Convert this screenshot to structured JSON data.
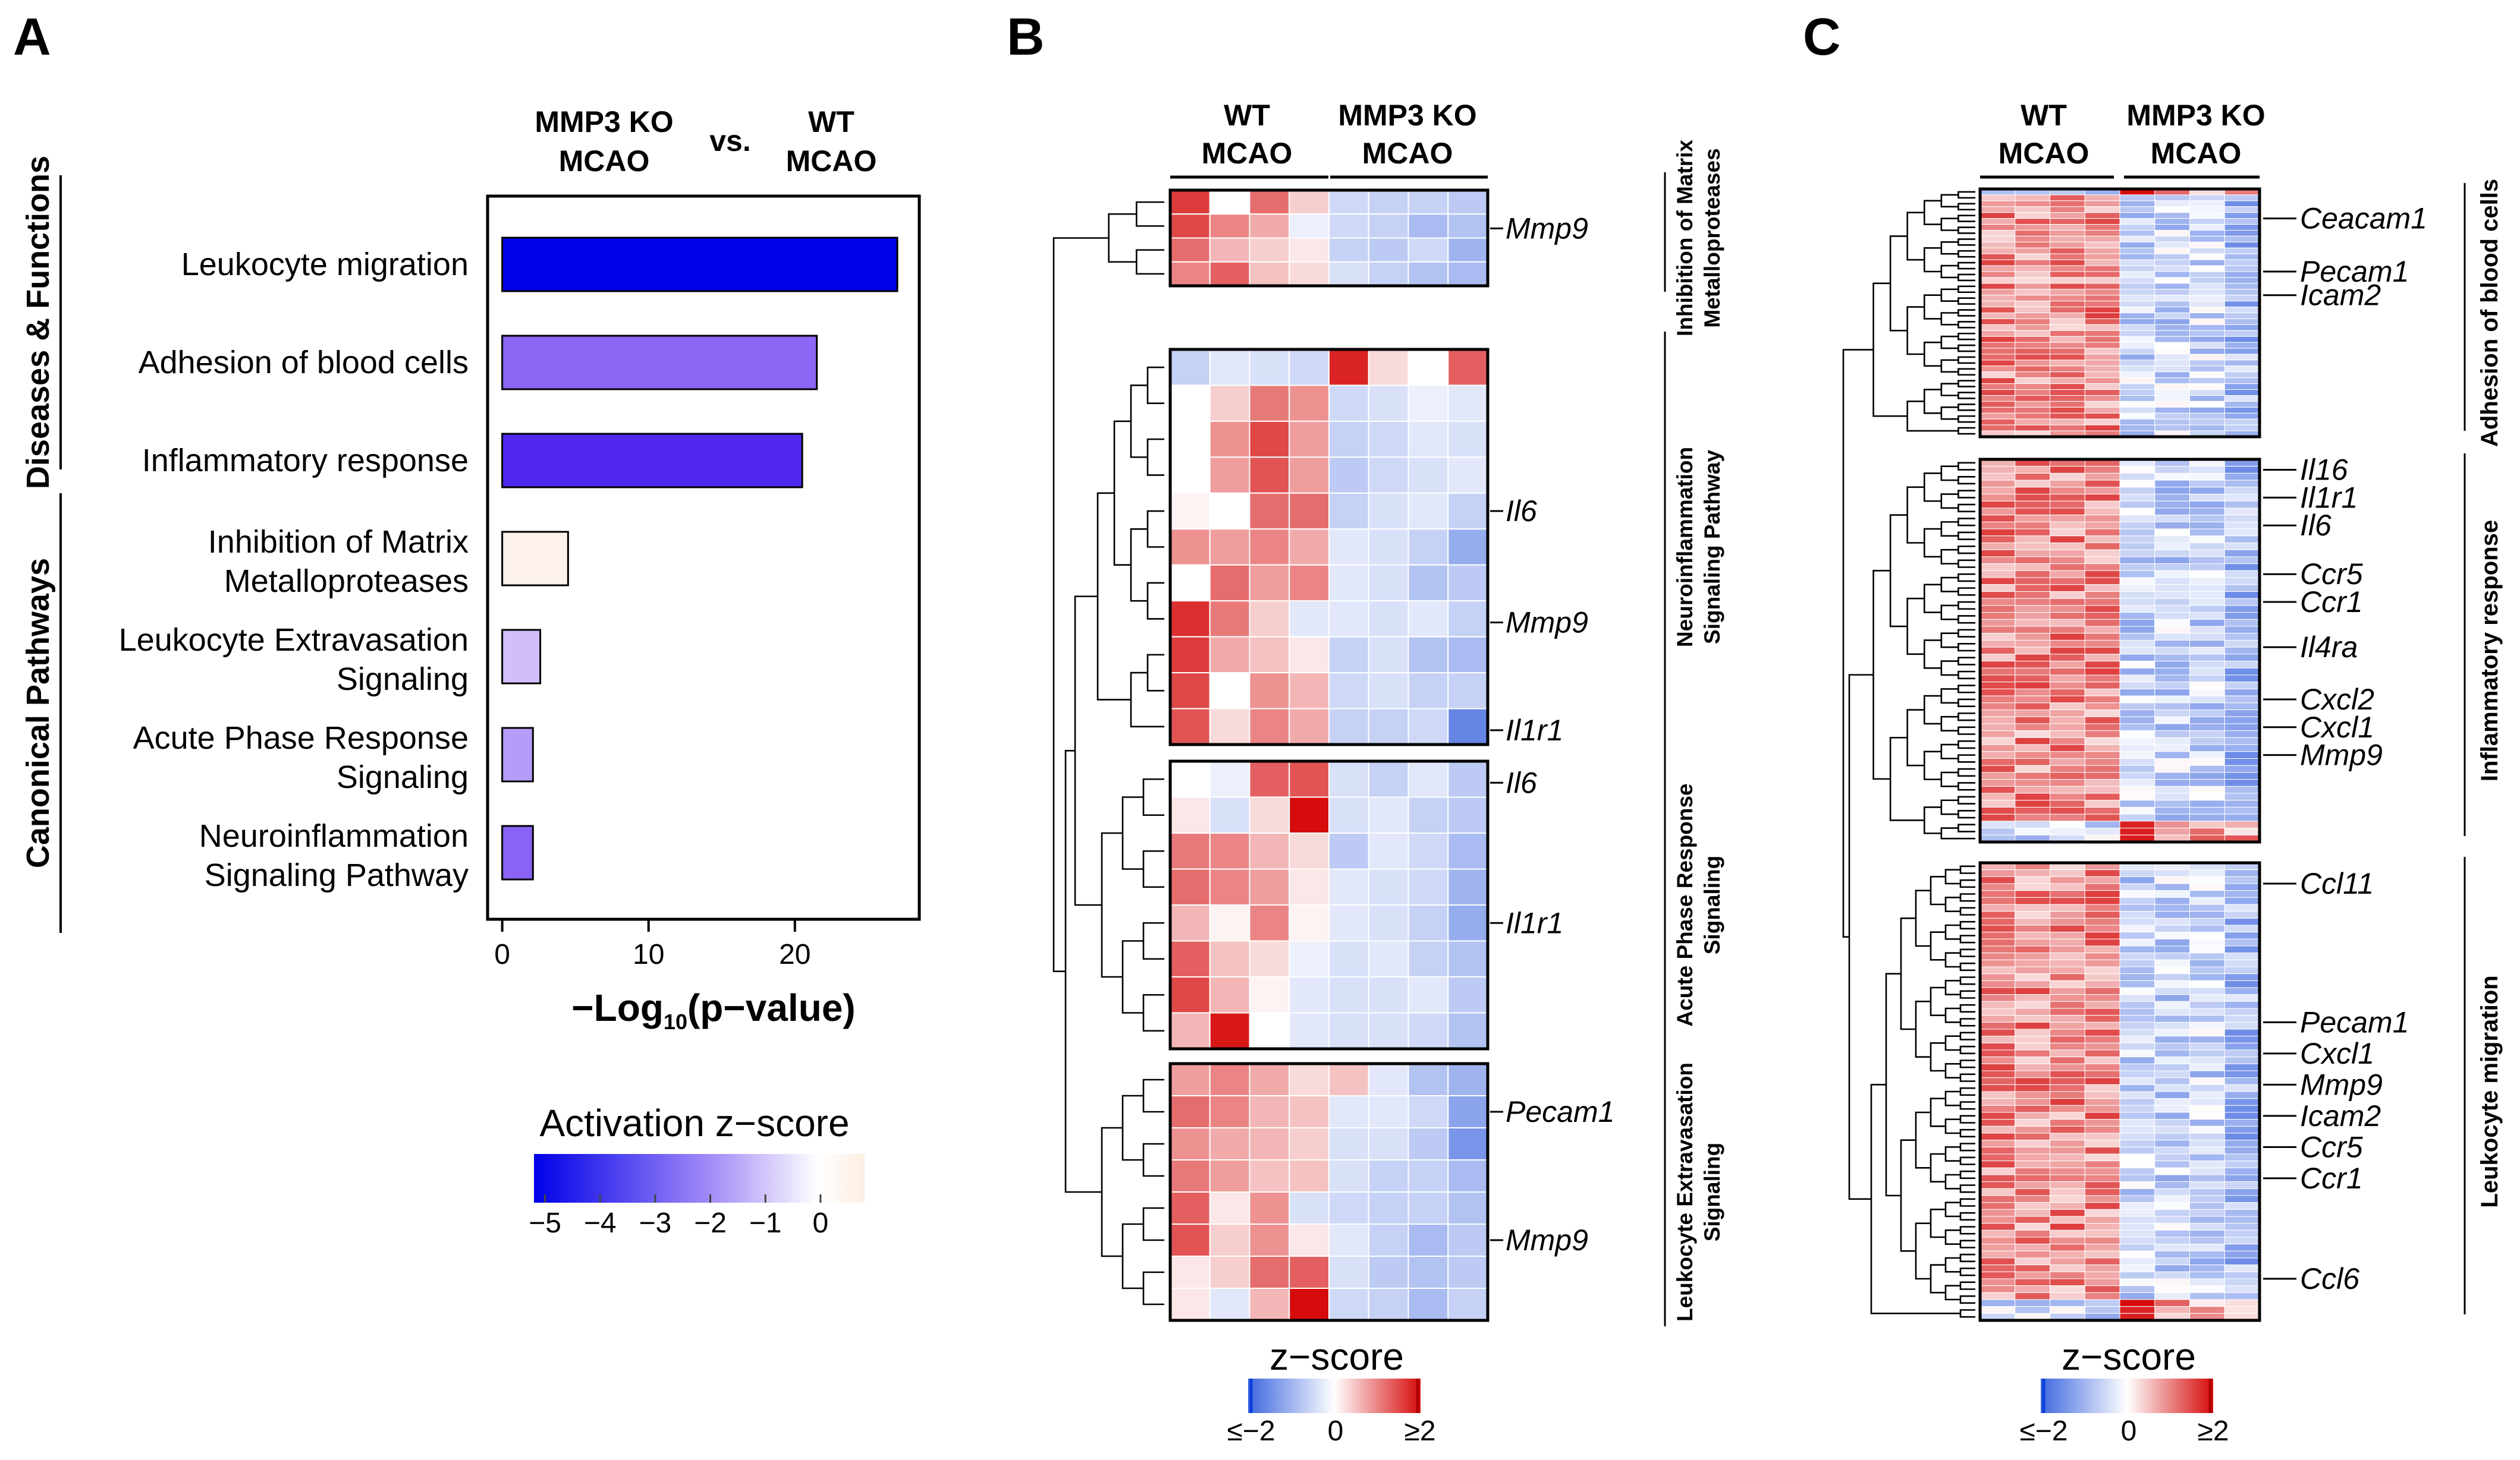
{
  "chart_data": [
    {
      "panel": "A",
      "type": "bar",
      "orientation": "horizontal",
      "header": {
        "left_line1": "MMP3 KO",
        "left_line2": "MCAO",
        "vs": "vs.",
        "right_line1": "WT",
        "right_line2": "MCAO"
      },
      "xlabel": {
        "prefix": "−Log",
        "sub": "10",
        "suffix": "(p−value)"
      },
      "xlim": [
        -1,
        28.5
      ],
      "xticks": [
        0,
        10,
        20
      ],
      "groups": [
        {
          "name": "Diseases & Functions",
          "start": 0,
          "end": 2
        },
        {
          "name": "Canonical Pathways",
          "start": 3,
          "end": 6
        }
      ],
      "categories": [
        {
          "line1": "Leukocyte migration",
          "line2": "",
          "value": 27.0,
          "zscore": -4.9,
          "color": "#0000e8"
        },
        {
          "line1": "Adhesion of blood cells",
          "line2": "",
          "value": 21.5,
          "zscore": -2.8,
          "color": "#8c66f5"
        },
        {
          "line1": "Inflammatory response",
          "line2": "",
          "value": 20.5,
          "zscore": -4.1,
          "color": "#5028f0"
        },
        {
          "line1": "Inhibition of Matrix",
          "line2": "Metalloproteases",
          "value": 4.5,
          "zscore": 0.3,
          "color": "#fdf2ec"
        },
        {
          "line1": "Leukocyte Extravasation",
          "line2": "Signaling",
          "value": 2.6,
          "zscore": -1.0,
          "color": "#d0bffb"
        },
        {
          "line1": "Acute Phase Response",
          "line2": "Signaling",
          "value": 2.1,
          "zscore": -1.6,
          "color": "#b49cf8"
        },
        {
          "line1": "Neuroinflammation",
          "line2": "Signaling Pathway",
          "value": 2.1,
          "zscore": -2.9,
          "color": "#8a63f4"
        }
      ],
      "colorbar": {
        "title": "Activation z−score",
        "min": -5.2,
        "max": 0.8,
        "ticks": [
          "−5",
          "−4",
          "−3",
          "−2",
          "−1",
          "0"
        ],
        "tick_values": [
          -5,
          -4,
          -3,
          -2,
          -1,
          0
        ],
        "colors": [
          "#0000e8",
          "#ffffff",
          "#fdf0e6"
        ]
      }
    },
    {
      "panel": "B",
      "type": "heatmap",
      "columns": [
        "WT MCAO",
        "WT MCAO",
        "WT MCAO",
        "WT MCAO",
        "MMP3 KO MCAO",
        "MMP3 KO MCAO",
        "MMP3 KO MCAO",
        "MMP3 KO MCAO"
      ],
      "col_groups": [
        {
          "line1": "WT",
          "line2": "MCAO"
        },
        {
          "line1": "MMP3 KO",
          "line2": "MCAO"
        }
      ],
      "blocks": [
        {
          "side_line1": "Inhibition of Matrix",
          "side_line2": "Metalloproteases",
          "rows": [
            [
              1.6,
              0.0,
              1.2,
              0.4,
              -0.5,
              -0.6,
              -0.6,
              -0.7
            ],
            [
              1.5,
              1.0,
              0.7,
              -0.2,
              -0.5,
              -0.6,
              -0.9,
              -0.8
            ],
            [
              1.2,
              0.6,
              0.4,
              0.2,
              -0.6,
              -0.7,
              -0.5,
              -1.0
            ],
            [
              1.0,
              1.3,
              0.5,
              0.3,
              -0.4,
              -0.6,
              -0.8,
              -0.9
            ]
          ],
          "genes": [
            {
              "name": "Mmp9",
              "row": 1.6
            }
          ]
        },
        {
          "side_line1": "Neuroinflammation",
          "side_line2": "Signaling Pathway",
          "rows": [
            [
              -0.6,
              -0.3,
              -0.4,
              -0.5,
              1.8,
              0.3,
              0.0,
              1.3
            ],
            [
              0.0,
              0.4,
              1.1,
              0.9,
              -0.5,
              -0.4,
              -0.2,
              -0.3
            ],
            [
              0.0,
              0.9,
              1.5,
              0.8,
              -0.6,
              -0.5,
              -0.3,
              -0.4
            ],
            [
              0.0,
              0.8,
              1.4,
              0.8,
              -0.7,
              -0.5,
              -0.4,
              -0.3
            ],
            [
              0.1,
              0.0,
              1.2,
              1.2,
              -0.6,
              -0.4,
              -0.3,
              -0.6
            ],
            [
              0.9,
              0.8,
              1.0,
              0.7,
              -0.3,
              -0.4,
              -0.6,
              -1.1
            ],
            [
              0.0,
              1.2,
              0.8,
              1.0,
              -0.3,
              -0.4,
              -0.8,
              -0.7
            ],
            [
              1.7,
              1.1,
              0.4,
              -0.3,
              -0.3,
              -0.4,
              -0.3,
              -0.6
            ],
            [
              1.6,
              0.7,
              0.5,
              0.2,
              -0.6,
              -0.4,
              -0.8,
              -0.9
            ],
            [
              1.5,
              0.0,
              0.9,
              0.6,
              -0.5,
              -0.4,
              -0.6,
              -0.6
            ],
            [
              1.4,
              0.3,
              1.0,
              0.7,
              -0.6,
              -0.6,
              -0.5,
              -1.6
            ]
          ],
          "genes": [
            {
              "name": "Il6",
              "row": 4.5
            },
            {
              "name": "Mmp9",
              "row": 7.6
            },
            {
              "name": "Il1r1",
              "row": 10.6
            }
          ]
        },
        {
          "side_line1": "Acute Phase Response",
          "side_line2": "Signaling",
          "rows": [
            [
              0.0,
              -0.2,
              1.3,
              1.4,
              -0.4,
              -0.6,
              -0.3,
              -0.7
            ],
            [
              0.2,
              -0.4,
              0.3,
              2.0,
              -0.4,
              -0.3,
              -0.6,
              -0.7
            ],
            [
              1.1,
              1.0,
              0.6,
              0.3,
              -0.7,
              -0.3,
              -0.5,
              -0.9
            ],
            [
              1.2,
              1.0,
              0.8,
              0.2,
              -0.3,
              -0.4,
              -0.5,
              -1.0
            ],
            [
              0.6,
              0.1,
              1.0,
              0.1,
              -0.3,
              -0.4,
              -0.6,
              -1.1
            ],
            [
              1.3,
              0.5,
              0.3,
              -0.2,
              -0.4,
              -0.3,
              -0.6,
              -0.8
            ],
            [
              1.5,
              0.6,
              0.1,
              -0.3,
              -0.4,
              -0.4,
              -0.3,
              -0.7
            ],
            [
              0.6,
              1.9,
              0.0,
              -0.3,
              -0.4,
              -0.4,
              -0.5,
              -0.8
            ]
          ],
          "genes": [
            {
              "name": "Il6",
              "row": 0.6
            },
            {
              "name": "Il1r1",
              "row": 4.5
            }
          ]
        },
        {
          "side_line1": "Leukocyte Extravasation",
          "side_line2": "Signaling",
          "rows": [
            [
              0.8,
              1.0,
              0.7,
              0.3,
              0.5,
              -0.3,
              -0.8,
              -1.0
            ],
            [
              1.2,
              1.0,
              0.6,
              0.5,
              -0.3,
              -0.3,
              -0.5,
              -1.2
            ],
            [
              0.9,
              0.7,
              0.6,
              0.4,
              -0.4,
              -0.4,
              -0.7,
              -1.4
            ],
            [
              1.1,
              0.8,
              0.5,
              0.5,
              -0.4,
              -0.6,
              -0.6,
              -0.9
            ],
            [
              1.3,
              0.2,
              0.9,
              -0.4,
              -0.5,
              -0.6,
              -0.6,
              -0.8
            ],
            [
              1.4,
              0.4,
              0.9,
              0.2,
              -0.3,
              -0.6,
              -0.9,
              -0.7
            ],
            [
              0.2,
              0.4,
              1.2,
              1.3,
              -0.4,
              -0.7,
              -0.8,
              -0.7
            ],
            [
              0.2,
              -0.3,
              0.6,
              2.0,
              -0.5,
              -0.6,
              -0.9,
              -0.6
            ]
          ],
          "genes": [
            {
              "name": "Pecam1",
              "row": 1.5
            },
            {
              "name": "Mmp9",
              "row": 5.5
            }
          ]
        }
      ],
      "colorbar": {
        "title": "z−score",
        "ticks": [
          "≤−2",
          "0",
          "≥2"
        ],
        "min": -2,
        "max": 2
      }
    },
    {
      "panel": "C",
      "type": "heatmap",
      "columns": [
        "WT MCAO",
        "WT MCAO",
        "WT MCAO",
        "WT MCAO",
        "MMP3 KO MCAO",
        "MMP3 KO MCAO",
        "MMP3 KO MCAO",
        "MMP3 KO MCAO"
      ],
      "col_groups": [
        {
          "line1": "WT",
          "line2": "MCAO"
        },
        {
          "line1": "MMP3 KO",
          "line2": "MCAO"
        }
      ],
      "blocks": [
        {
          "side": "Adhesion of blood cells",
          "n_rows": 42,
          "seed": 11,
          "genes": [
            {
              "name": "Ceacam1",
              "row": 5
            },
            {
              "name": "Pecam1",
              "row": 14
            },
            {
              "name": "Icam2",
              "row": 18
            }
          ]
        },
        {
          "side": "Inflammatory response",
          "n_rows": 55,
          "seed": 29,
          "genes": [
            {
              "name": "Il16",
              "row": 1.5
            },
            {
              "name": "Il1r1",
              "row": 5.5
            },
            {
              "name": "Il6",
              "row": 9.5
            },
            {
              "name": "Ccr5",
              "row": 16.5
            },
            {
              "name": "Ccr1",
              "row": 20.5
            },
            {
              "name": "Il4ra",
              "row": 27
            },
            {
              "name": "Cxcl2",
              "row": 34.5
            },
            {
              "name": "Cxcl1",
              "row": 38.5
            },
            {
              "name": "Mmp9",
              "row": 42.5
            }
          ]
        },
        {
          "side": "Leukocyte migration",
          "n_rows": 66,
          "seed": 47,
          "genes": [
            {
              "name": "Ccl11",
              "row": 3
            },
            {
              "name": "Pecam1",
              "row": 23
            },
            {
              "name": "Cxcl1",
              "row": 27.5
            },
            {
              "name": "Mmp9",
              "row": 32
            },
            {
              "name": "Icam2",
              "row": 36.5
            },
            {
              "name": "Ccr5",
              "row": 41
            },
            {
              "name": "Ccr1",
              "row": 45.5
            },
            {
              "name": "Ccl6",
              "row": 60
            }
          ]
        }
      ],
      "colorbar": {
        "title": "z−score",
        "ticks": [
          "≤−2",
          "0",
          "≥2"
        ],
        "min": -2,
        "max": 2
      }
    }
  ]
}
